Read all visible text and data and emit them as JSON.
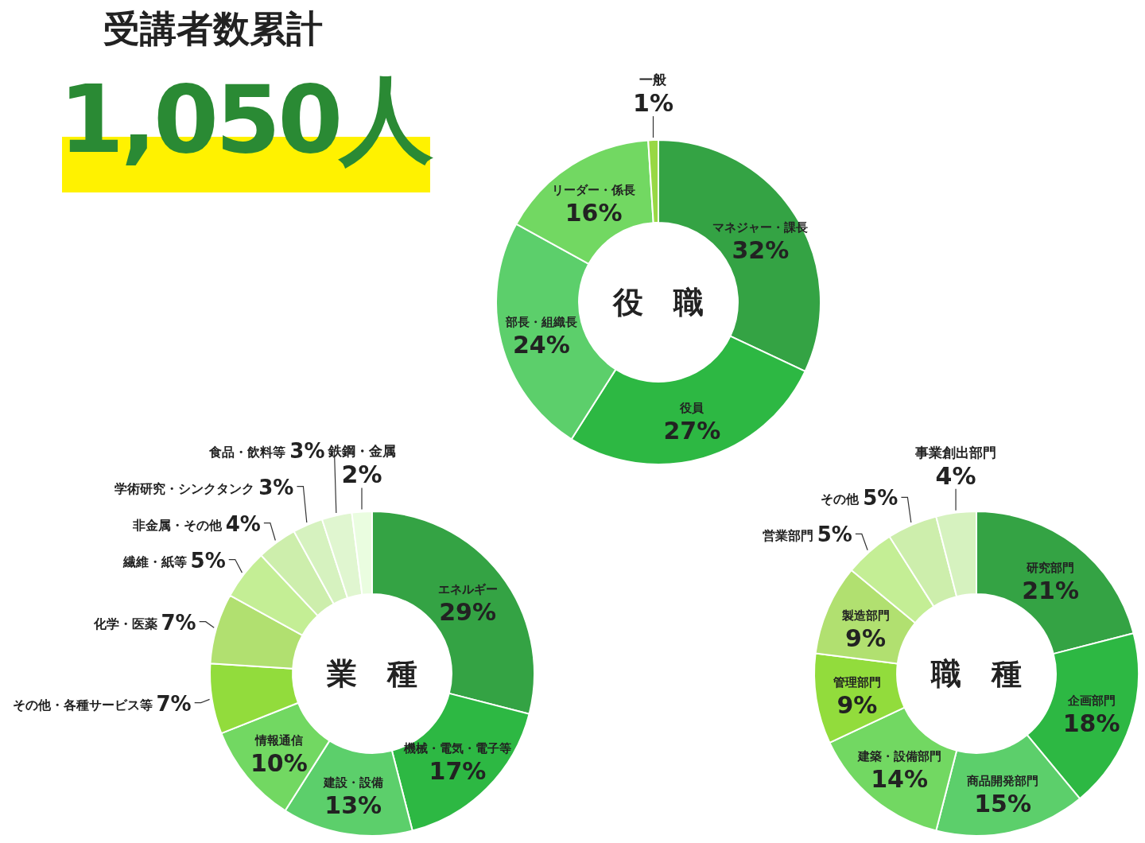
{
  "chart_data": [
    {
      "type": "other",
      "title": "受講者数累計",
      "annotations": [
        "1,050人"
      ]
    },
    {
      "type": "donut",
      "title": "役　職",
      "categories": [
        "マネジャー・課長",
        "役員",
        "部長・組織長",
        "リーダー・係長",
        "一般"
      ],
      "values": [
        32,
        27,
        24,
        16,
        1
      ],
      "value_labels": [
        "32%",
        "27%",
        "24%",
        "16%",
        "1%"
      ],
      "colors": [
        "#34a344",
        "#2db843",
        "#5ccf6b",
        "#72d862",
        "#98d844"
      ]
    },
    {
      "type": "donut",
      "title": "業　種",
      "categories": [
        "エネルギー",
        "機械・電気・電子等",
        "建設・設備",
        "情報通信",
        "その他・各種サービス等",
        "化学・医薬",
        "繊維・紙等",
        "非金属・その他",
        "学術研究・シンクタンク",
        "食品・飲料等",
        "鉄鋼・金属"
      ],
      "values": [
        29,
        17,
        13,
        10,
        7,
        7,
        5,
        4,
        3,
        3,
        2
      ],
      "value_labels": [
        "29%",
        "17%",
        "13%",
        "10%",
        "7%",
        "7%",
        "5%",
        "4%",
        "3%",
        "3%",
        "2%"
      ],
      "colors": [
        "#34a344",
        "#2db843",
        "#5ccf6b",
        "#72d862",
        "#92dc3c",
        "#b1e070",
        "#c4ee95",
        "#cdeeac",
        "#d6f2bf",
        "#e0f6d0",
        "#eafde0"
      ]
    },
    {
      "type": "donut",
      "title": "職　種",
      "categories": [
        "研究部門",
        "企画部門",
        "商品開発部門",
        "建築・設備部門",
        "管理部門",
        "製造部門",
        "営業部門",
        "その他",
        "事業創出部門"
      ],
      "values": [
        21,
        18,
        15,
        14,
        9,
        9,
        5,
        5,
        4
      ],
      "value_labels": [
        "21%",
        "18%",
        "15%",
        "14%",
        "9%",
        "9%",
        "5%",
        "5%",
        "4%"
      ],
      "colors": [
        "#34a344",
        "#2db843",
        "#5ccf6b",
        "#72d862",
        "#92dc3c",
        "#b1e070",
        "#c4ee95",
        "#cdeeac",
        "#d6f2bf"
      ]
    }
  ]
}
